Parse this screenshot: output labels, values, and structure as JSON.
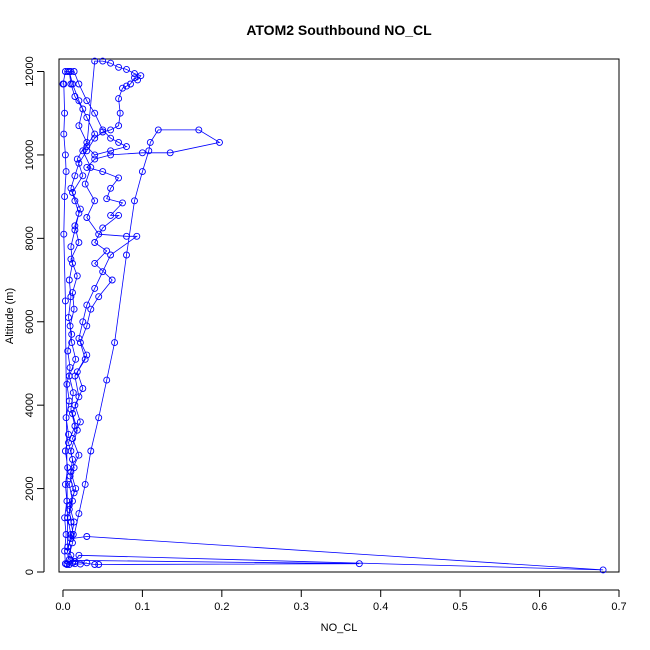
{
  "chart_data": {
    "type": "scatter",
    "title": "ATOM2 Southbound NO_CL",
    "xlabel": "NO_CL",
    "ylabel": "Altitude (m)",
    "xlim": [
      -0.005,
      0.7
    ],
    "ylim": [
      0,
      12300
    ],
    "xticks": [
      "0.0",
      "0.1",
      "0.2",
      "0.3",
      "0.4",
      "0.5",
      "0.6",
      "0.7"
    ],
    "yticks": [
      "0",
      "2000",
      "4000",
      "6000",
      "8000",
      "10000",
      "12000"
    ],
    "color": "#0000ff",
    "marker": "open-circle",
    "line": true,
    "series": [
      {
        "values": [
          [
            0.005,
            180
          ],
          [
            0.012,
            220
          ],
          [
            0.008,
            300
          ],
          [
            0.015,
            250
          ],
          [
            0.01,
            400
          ],
          [
            0.006,
            600
          ],
          [
            0.013,
            900
          ],
          [
            0.01,
            1200
          ],
          [
            0.008,
            1500
          ],
          [
            0.014,
            1900
          ],
          [
            0.009,
            2300
          ],
          [
            0.012,
            2700
          ],
          [
            0.007,
            3100
          ],
          [
            0.015,
            3500
          ],
          [
            0.01,
            3900
          ],
          [
            0.013,
            4300
          ],
          [
            0.008,
            4700
          ],
          [
            0.016,
            5100
          ],
          [
            0.011,
            5500
          ],
          [
            0.009,
            5900
          ],
          [
            0.014,
            6300
          ],
          [
            0.012,
            6700
          ],
          [
            0.018,
            7100
          ],
          [
            0.01,
            7500
          ],
          [
            0.02,
            7900
          ],
          [
            0.015,
            8300
          ],
          [
            0.022,
            8700
          ],
          [
            0.012,
            9100
          ],
          [
            0.025,
            9500
          ],
          [
            0.018,
            9900
          ],
          [
            0.03,
            10300
          ],
          [
            0.02,
            10700
          ],
          [
            0.025,
            11100
          ],
          [
            0.015,
            11400
          ],
          [
            0.01,
            11700
          ],
          [
            0.008,
            12000
          ],
          [
            0.012,
            11700
          ],
          [
            0.02,
            11300
          ],
          [
            0.03,
            10900
          ],
          [
            0.04,
            10500
          ],
          [
            0.025,
            10100
          ],
          [
            0.035,
            9700
          ],
          [
            0.028,
            9300
          ],
          [
            0.04,
            8900
          ],
          [
            0.03,
            8500
          ],
          [
            0.045,
            8100
          ],
          [
            0.08,
            8050
          ],
          [
            0.093,
            8050
          ],
          [
            0.06,
            7600
          ],
          [
            0.05,
            7200
          ],
          [
            0.04,
            6800
          ],
          [
            0.03,
            6400
          ],
          [
            0.025,
            6000
          ],
          [
            0.02,
            5600
          ],
          [
            0.03,
            5200
          ],
          [
            0.018,
            4800
          ],
          [
            0.025,
            4400
          ],
          [
            0.015,
            4000
          ],
          [
            0.022,
            3600
          ],
          [
            0.012,
            3200
          ],
          [
            0.02,
            2800
          ],
          [
            0.01,
            2400
          ],
          [
            0.016,
            2000
          ],
          [
            0.008,
            1600
          ],
          [
            0.014,
            1200
          ],
          [
            0.01,
            800
          ],
          [
            0.03,
            850
          ],
          [
            0.68,
            50
          ],
          [
            0.02,
            400
          ],
          [
            0.015,
            250
          ],
          [
            0.04,
            180
          ],
          [
            0.045,
            180
          ],
          [
            0.373,
            200
          ],
          [
            0.01,
            280
          ],
          [
            0.005,
            200
          ],
          [
            0.012,
            700
          ],
          [
            0.02,
            1400
          ],
          [
            0.028,
            2100
          ],
          [
            0.035,
            2900
          ],
          [
            0.045,
            3700
          ],
          [
            0.055,
            4600
          ],
          [
            0.065,
            5500
          ],
          [
            0.08,
            7600
          ],
          [
            0.09,
            8900
          ],
          [
            0.1,
            9600
          ],
          [
            0.108,
            10100
          ],
          [
            0.11,
            10300
          ],
          [
            0.12,
            10600
          ],
          [
            0.171,
            10600
          ],
          [
            0.197,
            10300
          ],
          [
            0.135,
            10050
          ],
          [
            0.1,
            10050
          ],
          [
            0.06,
            10000
          ],
          [
            0.04,
            9900
          ],
          [
            0.03,
            9700
          ],
          [
            0.05,
            9600
          ],
          [
            0.07,
            9450
          ],
          [
            0.06,
            9200
          ],
          [
            0.055,
            8950
          ],
          [
            0.075,
            8850
          ],
          [
            0.06,
            8550
          ],
          [
            0.07,
            8550
          ],
          [
            0.05,
            8250
          ],
          [
            0.04,
            7900
          ],
          [
            0.055,
            7700
          ],
          [
            0.04,
            7400
          ],
          [
            0.062,
            7000
          ],
          [
            0.045,
            6600
          ],
          [
            0.035,
            6300
          ],
          [
            0.03,
            5900
          ],
          [
            0.022,
            5500
          ],
          [
            0.028,
            5100
          ],
          [
            0.015,
            4700
          ],
          [
            0.02,
            4200
          ],
          [
            0.012,
            3800
          ],
          [
            0.018,
            3400
          ],
          [
            0.01,
            2900
          ],
          [
            0.014,
            2500
          ],
          [
            0.008,
            2100
          ],
          [
            0.012,
            1700
          ],
          [
            0.006,
            1300
          ],
          [
            0.01,
            900
          ],
          [
            0.006,
            500
          ],
          [
            0.003,
            6500
          ],
          [
            0.001,
            8100
          ],
          [
            0.002,
            9000
          ],
          [
            0.004,
            9600
          ],
          [
            0.003,
            10000
          ],
          [
            0.001,
            10500
          ],
          [
            0.002,
            11000
          ],
          [
            0.001,
            11700
          ],
          [
            0.0,
            11700
          ],
          [
            0.003,
            12000
          ],
          [
            0.006,
            12000
          ],
          [
            0.01,
            12000
          ],
          [
            0.014,
            12000
          ],
          [
            0.02,
            11700
          ],
          [
            0.03,
            11300
          ],
          [
            0.04,
            11000
          ],
          [
            0.05,
            10600
          ],
          [
            0.06,
            10400
          ],
          [
            0.07,
            10300
          ],
          [
            0.08,
            10200
          ],
          [
            0.06,
            10100
          ],
          [
            0.04,
            10000
          ],
          [
            0.03,
            10200
          ],
          [
            0.04,
            12250
          ],
          [
            0.05,
            12250
          ],
          [
            0.06,
            12200
          ],
          [
            0.07,
            12100
          ],
          [
            0.08,
            12050
          ],
          [
            0.09,
            11950
          ],
          [
            0.098,
            11900
          ],
          [
            0.094,
            11800
          ],
          [
            0.09,
            11850
          ],
          [
            0.085,
            11700
          ],
          [
            0.08,
            11650
          ],
          [
            0.075,
            11600
          ],
          [
            0.07,
            11350
          ],
          [
            0.072,
            11000
          ],
          [
            0.07,
            10700
          ],
          [
            0.06,
            10600
          ],
          [
            0.05,
            10550
          ],
          [
            0.04,
            10400
          ],
          [
            0.03,
            10100
          ],
          [
            0.02,
            9800
          ],
          [
            0.015,
            9500
          ],
          [
            0.01,
            9200
          ],
          [
            0.015,
            8900
          ],
          [
            0.02,
            8600
          ],
          [
            0.015,
            8200
          ],
          [
            0.01,
            7800
          ],
          [
            0.012,
            7400
          ],
          [
            0.008,
            7000
          ],
          [
            0.01,
            6600
          ],
          [
            0.007,
            6100
          ],
          [
            0.011,
            5700
          ],
          [
            0.006,
            5300
          ],
          [
            0.009,
            4900
          ],
          [
            0.005,
            4500
          ],
          [
            0.008,
            4100
          ],
          [
            0.004,
            3700
          ],
          [
            0.007,
            3300
          ],
          [
            0.003,
            2900
          ],
          [
            0.006,
            2500
          ],
          [
            0.003,
            2100
          ],
          [
            0.005,
            1700
          ],
          [
            0.002,
            1300
          ],
          [
            0.004,
            900
          ],
          [
            0.002,
            500
          ],
          [
            0.003,
            200
          ],
          [
            0.008,
            180
          ],
          [
            0.015,
            200
          ],
          [
            0.022,
            190
          ],
          [
            0.03,
            220
          ]
        ]
      }
    ]
  }
}
